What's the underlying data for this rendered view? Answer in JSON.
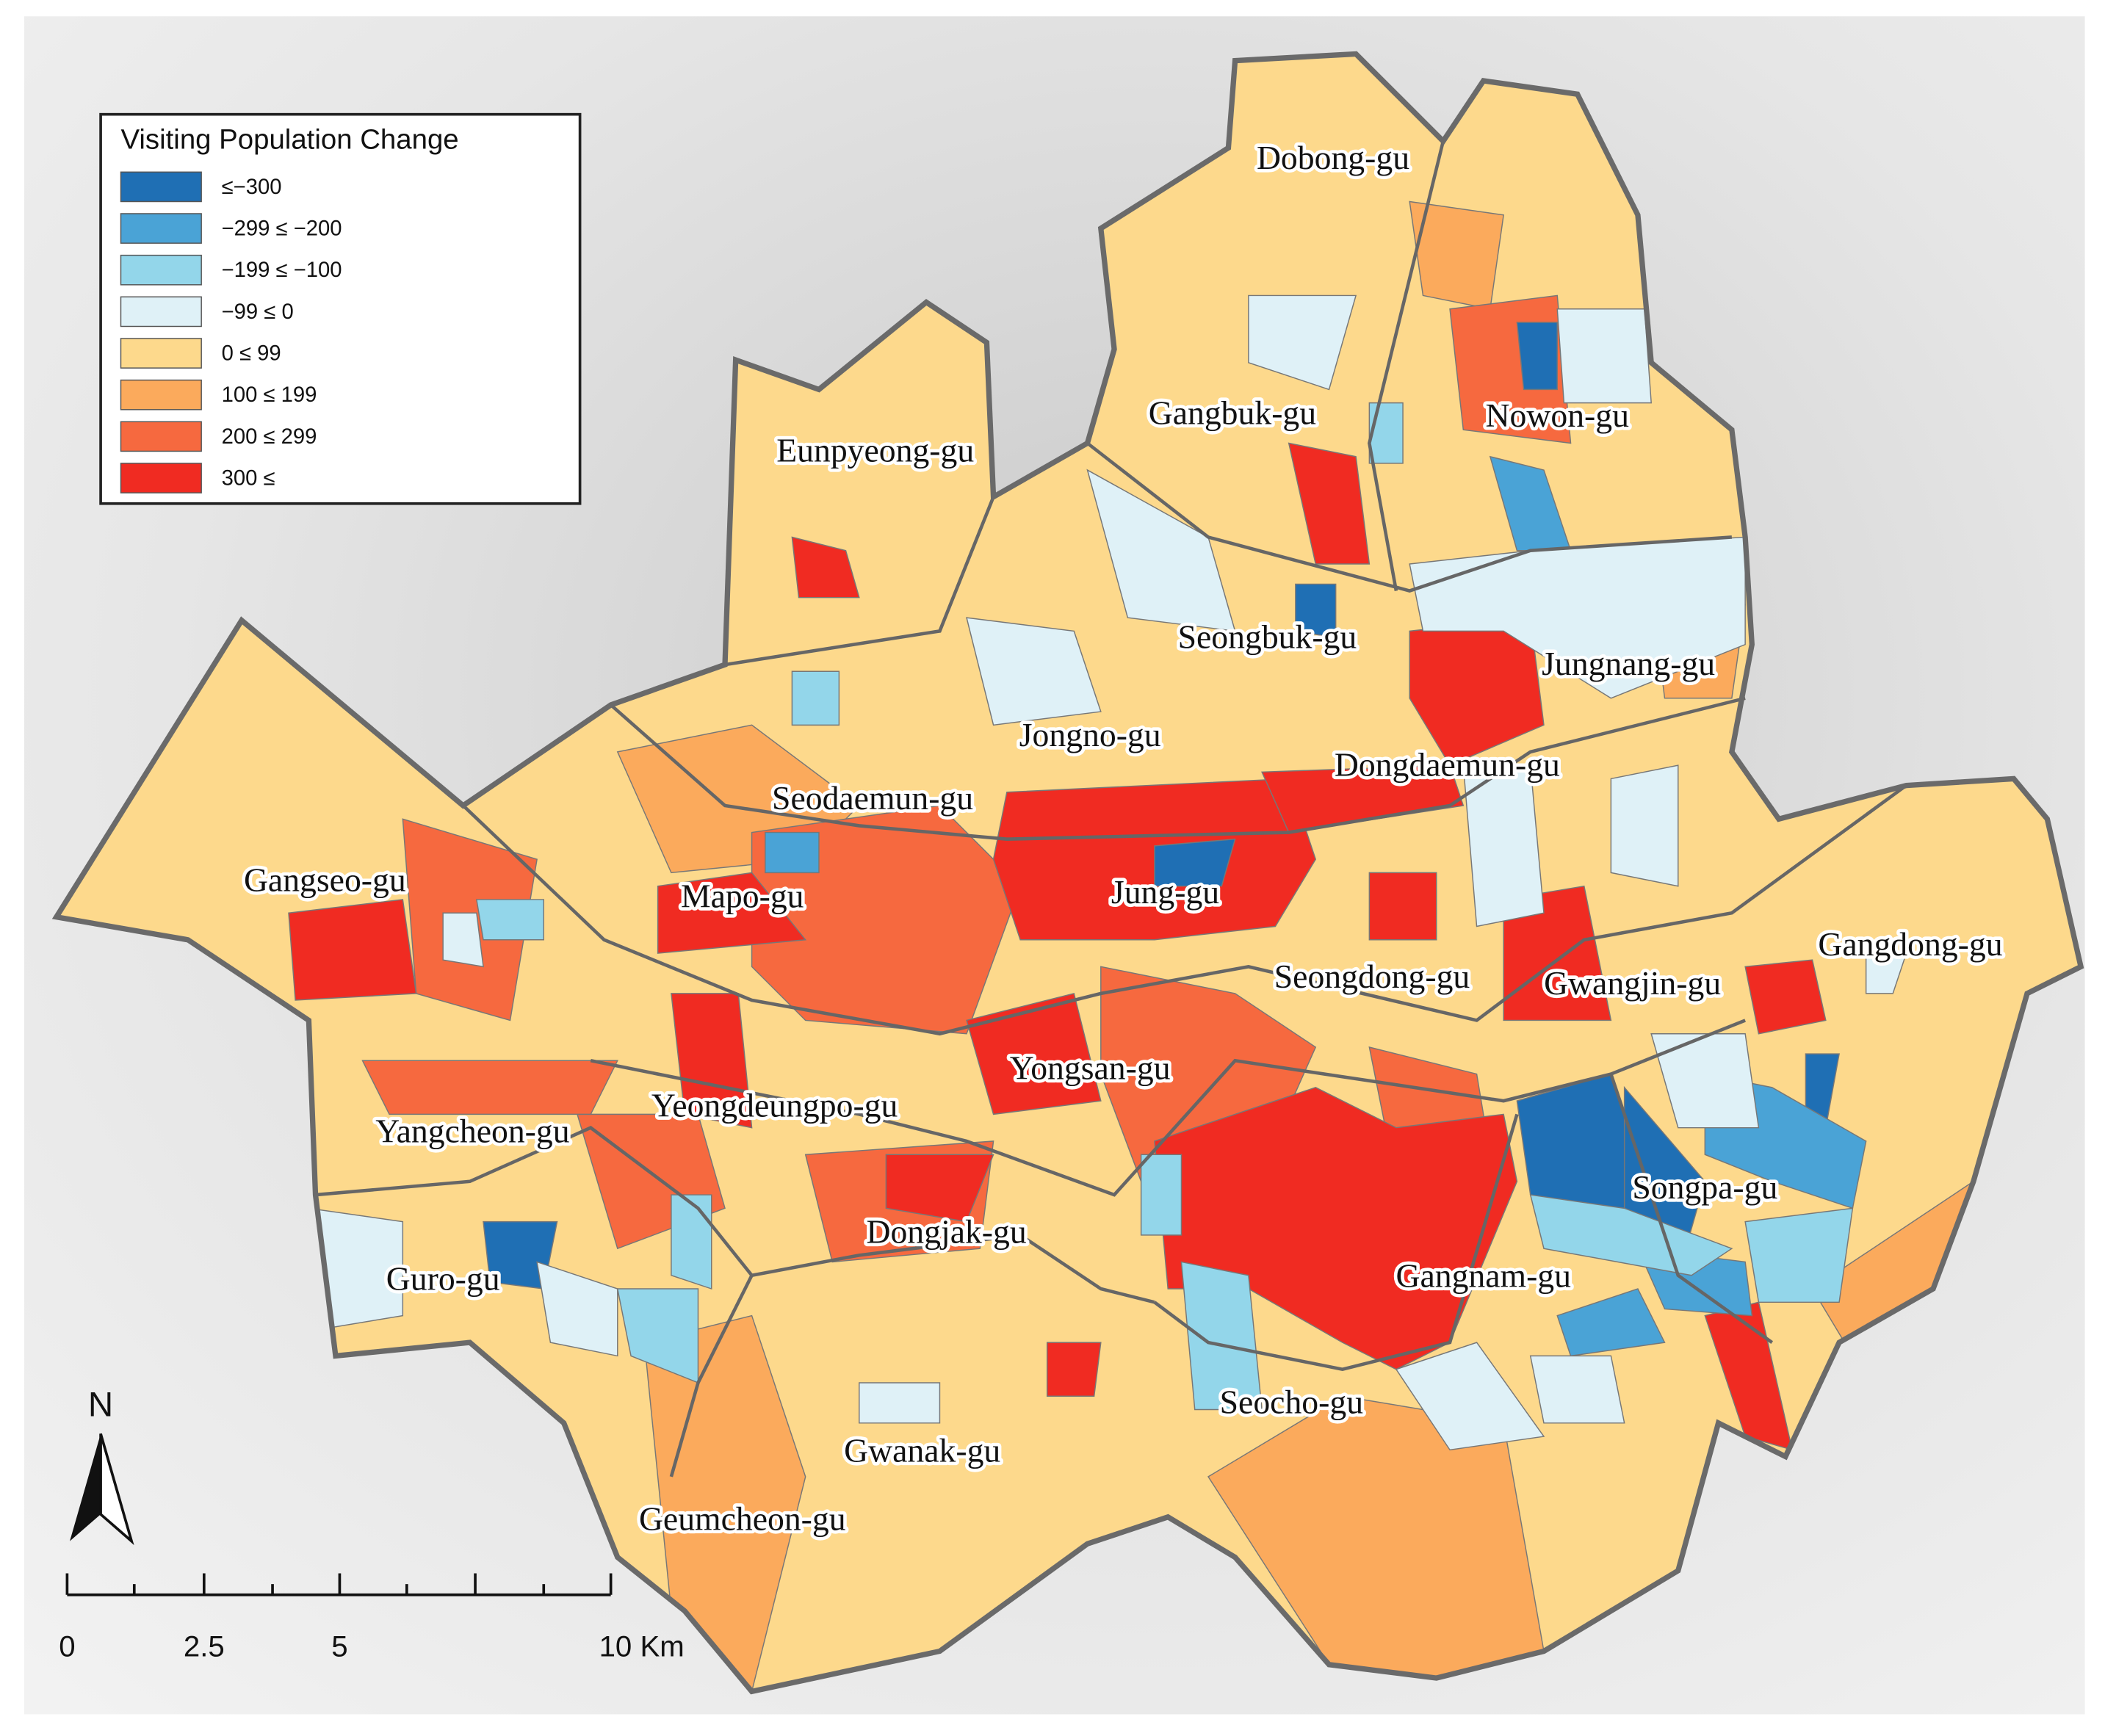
{
  "legend": {
    "title": "Visiting Population Change",
    "items": [
      {
        "label": "≤−300",
        "color": "#1f6fb4"
      },
      {
        "label": "−299 ≤ −200",
        "color": "#4aa3d6"
      },
      {
        "label": "−199 ≤ −100",
        "color": "#93d6ea"
      },
      {
        "label": "−99 ≤ 0",
        "color": "#dff1f7"
      },
      {
        "label": "0 ≤ 99",
        "color": "#fdd98c"
      },
      {
        "label": "100 ≤ 199",
        "color": "#fbaa5c"
      },
      {
        "label": "200 ≤ 299",
        "color": "#f6693f"
      },
      {
        "label": "300 ≤",
        "color": "#f02b22"
      }
    ]
  },
  "districts": [
    "Dobong-gu",
    "Gangbuk-gu",
    "Nowon-gu",
    "Eunpyeong-gu",
    "Seongbuk-gu",
    "Jungnang-gu",
    "Jongno-gu",
    "Dongdaemun-gu",
    "Seodaemun-gu",
    "Gangseo-gu",
    "Mapo-gu",
    "Jung-gu",
    "Gangdong-gu",
    "Seongdong-gu",
    "Gwangjin-gu",
    "Yongsan-gu",
    "Yeongdeungpo-gu",
    "Yangcheon-gu",
    "Songpa-gu",
    "Dongjak-gu",
    "Guro-gu",
    "Gangnam-gu",
    "Seocho-gu",
    "Gwanak-gu",
    "Geumcheon-gu"
  ],
  "north": "N",
  "scale_bar": [
    "0",
    "2.5",
    "5",
    "10 Km"
  ]
}
